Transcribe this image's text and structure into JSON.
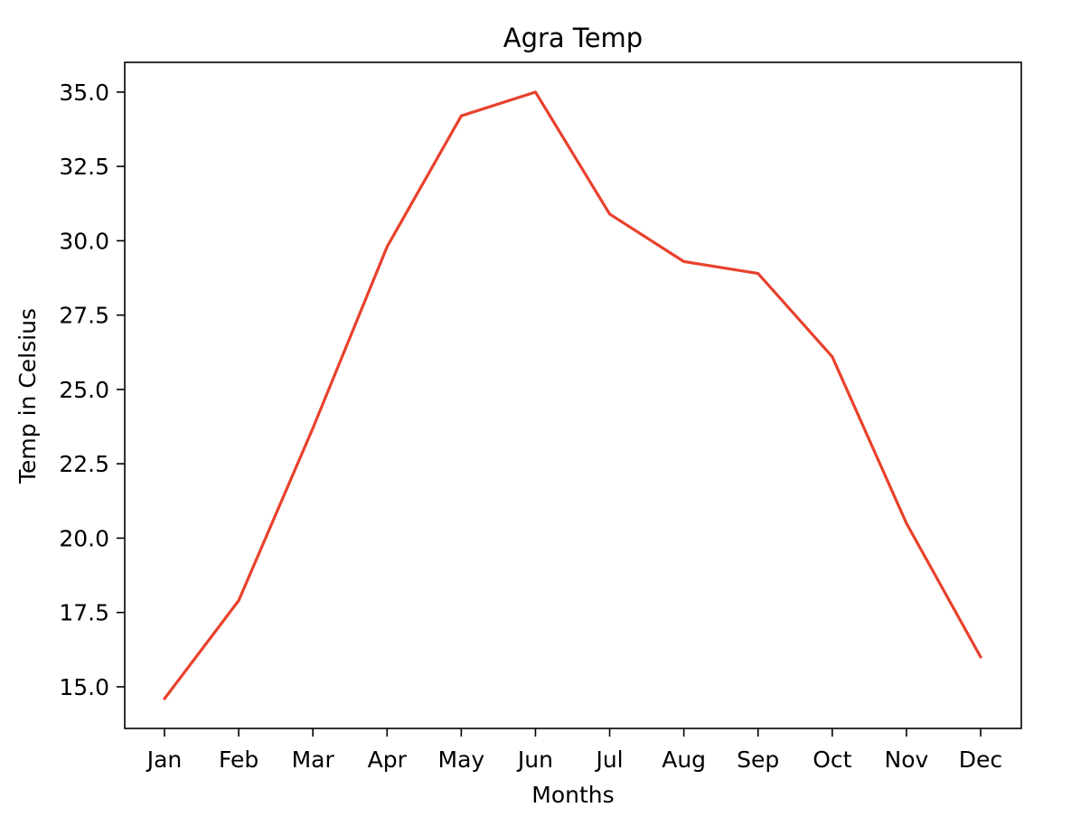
{
  "chart_data": {
    "type": "line",
    "title": "Agra Temp",
    "xlabel": "Months",
    "ylabel": "Temp in Celsius",
    "categories": [
      "Jan",
      "Feb",
      "Mar",
      "Apr",
      "May",
      "Jun",
      "Jul",
      "Aug",
      "Sep",
      "Oct",
      "Nov",
      "Dec"
    ],
    "series": [
      {
        "name": "Agra Temp",
        "color": "#e8412c",
        "values": [
          14.6,
          17.9,
          23.7,
          29.8,
          34.2,
          35.0,
          30.9,
          29.3,
          28.9,
          26.1,
          20.5,
          16.0
        ]
      }
    ],
    "ylim": [
      13.6,
      36.0
    ],
    "yticks": [
      "15.0",
      "17.5",
      "20.0",
      "22.5",
      "25.0",
      "27.5",
      "30.0",
      "32.5",
      "35.0"
    ],
    "grid": false,
    "legend": "none"
  }
}
